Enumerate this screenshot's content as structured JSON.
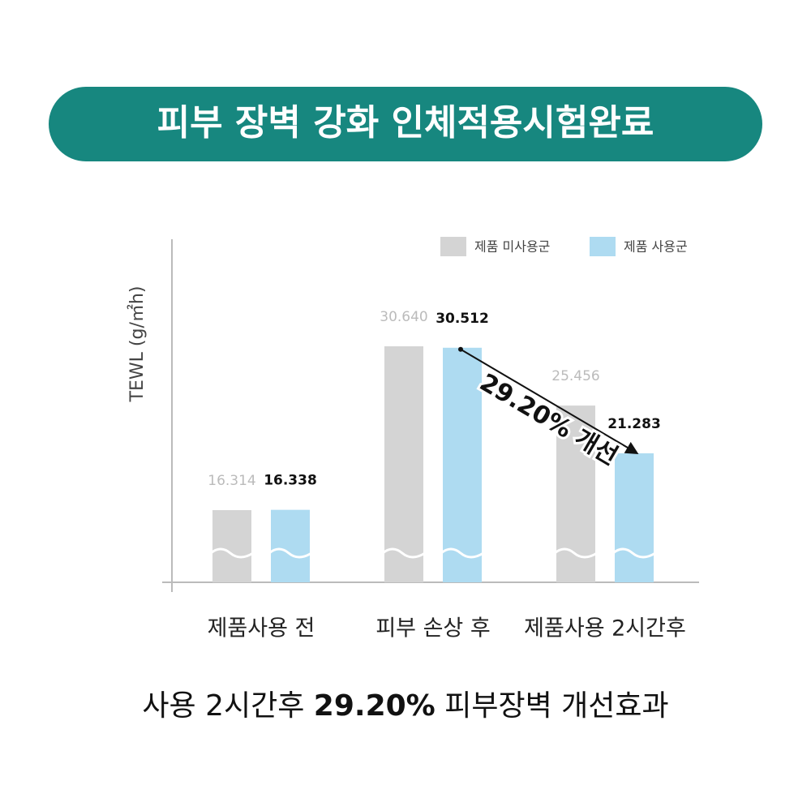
{
  "chart_data": {
    "type": "bar",
    "title": "피부 장벽 강화 인체적용시험완료",
    "y_label": "TEWL (g/㎡h)",
    "categories": [
      "제품사용 전",
      "피부 손상 후",
      "제품사용 2시간후"
    ],
    "series": [
      {
        "name": "제품 미사용군",
        "color": "#d4d4d4",
        "values": [
          16.314,
          30.64,
          25.456
        ],
        "value_labels": [
          "16.314",
          "30.640",
          "25.456"
        ]
      },
      {
        "name": "제품 사용군",
        "color": "#aedbf1",
        "values": [
          16.338,
          30.512,
          21.283
        ],
        "value_labels": [
          "16.338",
          "30.512",
          "21.283"
        ]
      }
    ],
    "ylim": [
      10,
      40
    ],
    "annotation": "29.20% 개선",
    "caption": [
      "사용 2시간후",
      "29.20%",
      "피부장벽 개선효과"
    ],
    "legend": "top-right"
  }
}
